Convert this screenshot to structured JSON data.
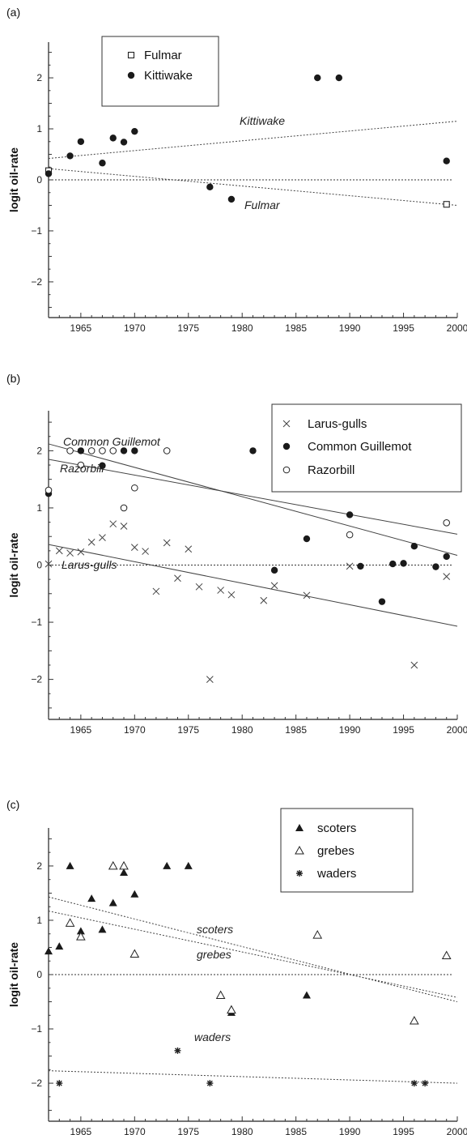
{
  "chart_data": [
    {
      "panel_label": "(a)",
      "type": "scatter",
      "ylabel": "logit oil-rate",
      "xlim": [
        1962,
        2000
      ],
      "ylim": [
        -2.7,
        2.7
      ],
      "xticks": [
        1965,
        1970,
        1975,
        1980,
        1985,
        1990,
        1995,
        2000
      ],
      "yticks": [
        -2,
        -1,
        0,
        1,
        2
      ],
      "series": [
        {
          "name": "Fulmar",
          "marker": "open-square",
          "points": [
            {
              "x": 1962,
              "y": 0.18
            },
            {
              "x": 1999,
              "y": -0.48
            }
          ]
        },
        {
          "name": "Kittiwake",
          "marker": "filled-circle",
          "points": [
            {
              "x": 1962,
              "y": 0.12
            },
            {
              "x": 1964,
              "y": 0.47
            },
            {
              "x": 1965,
              "y": 0.75
            },
            {
              "x": 1967,
              "y": 0.33
            },
            {
              "x": 1968,
              "y": 0.82
            },
            {
              "x": 1969,
              "y": 0.74
            },
            {
              "x": 1970,
              "y": 0.95
            },
            {
              "x": 1977,
              "y": -0.14
            },
            {
              "x": 1979,
              "y": -0.38
            },
            {
              "x": 1987,
              "y": 2.0
            },
            {
              "x": 1989,
              "y": 2.0
            },
            {
              "x": 1999,
              "y": 0.37
            }
          ]
        }
      ],
      "trend_lines": [
        {
          "label": "Kittiwake",
          "x": [
            1962,
            2000
          ],
          "y": [
            0.42,
            1.15
          ],
          "style": "dotted"
        },
        {
          "label": "Fulmar",
          "x": [
            1962,
            2000
          ],
          "y": [
            0.22,
            -0.5
          ],
          "style": "dotted"
        }
      ],
      "zero_line": true,
      "legend_position": "top-left"
    },
    {
      "panel_label": "(b)",
      "type": "scatter",
      "ylabel": "logit oil-rate",
      "xlim": [
        1962,
        2000
      ],
      "ylim": [
        -2.7,
        2.7
      ],
      "xticks": [
        1965,
        1970,
        1975,
        1980,
        1985,
        1990,
        1995,
        2000
      ],
      "yticks": [
        -2,
        -1,
        0,
        1,
        2
      ],
      "series": [
        {
          "name": "Larus-gulls",
          "marker": "cross",
          "points": [
            {
              "x": 1962,
              "y": 0.02
            },
            {
              "x": 1963,
              "y": 0.25
            },
            {
              "x": 1964,
              "y": 0.21
            },
            {
              "x": 1965,
              "y": 0.23
            },
            {
              "x": 1966,
              "y": 0.4
            },
            {
              "x": 1967,
              "y": 0.48
            },
            {
              "x": 1968,
              "y": 0.72
            },
            {
              "x": 1969,
              "y": 0.68
            },
            {
              "x": 1970,
              "y": 0.31
            },
            {
              "x": 1971,
              "y": 0.24
            },
            {
              "x": 1972,
              "y": -0.46
            },
            {
              "x": 1973,
              "y": 0.39
            },
            {
              "x": 1974,
              "y": -0.23
            },
            {
              "x": 1975,
              "y": 0.28
            },
            {
              "x": 1976,
              "y": -0.38
            },
            {
              "x": 1977,
              "y": -2.0
            },
            {
              "x": 1978,
              "y": -0.44
            },
            {
              "x": 1979,
              "y": -0.52
            },
            {
              "x": 1982,
              "y": -0.62
            },
            {
              "x": 1983,
              "y": -0.36
            },
            {
              "x": 1986,
              "y": -0.53
            },
            {
              "x": 1990,
              "y": -0.02
            },
            {
              "x": 1996,
              "y": -1.75
            },
            {
              "x": 1999,
              "y": -0.2
            }
          ]
        },
        {
          "name": "Common Guillemot",
          "marker": "filled-circle",
          "points": [
            {
              "x": 1962,
              "y": 1.25
            },
            {
              "x": 1965,
              "y": 2.0
            },
            {
              "x": 1967,
              "y": 1.74
            },
            {
              "x": 1969,
              "y": 2.0
            },
            {
              "x": 1970,
              "y": 2.0
            },
            {
              "x": 1981,
              "y": 2.0
            },
            {
              "x": 1983,
              "y": -0.09
            },
            {
              "x": 1986,
              "y": 0.46
            },
            {
              "x": 1990,
              "y": 0.88
            },
            {
              "x": 1991,
              "y": -0.02
            },
            {
              "x": 1993,
              "y": -0.64
            },
            {
              "x": 1994,
              "y": 0.02
            },
            {
              "x": 1995,
              "y": 0.03
            },
            {
              "x": 1996,
              "y": 0.33
            },
            {
              "x": 1998,
              "y": -0.03
            },
            {
              "x": 1999,
              "y": 0.15
            }
          ]
        },
        {
          "name": "Razorbill",
          "marker": "open-circle",
          "points": [
            {
              "x": 1962,
              "y": 1.31
            },
            {
              "x": 1964,
              "y": 2.0
            },
            {
              "x": 1965,
              "y": 1.75
            },
            {
              "x": 1966,
              "y": 2.0
            },
            {
              "x": 1967,
              "y": 2.0
            },
            {
              "x": 1968,
              "y": 2.0
            },
            {
              "x": 1969,
              "y": 1.0
            },
            {
              "x": 1970,
              "y": 1.35
            },
            {
              "x": 1973,
              "y": 2.0
            },
            {
              "x": 1990,
              "y": 0.53
            },
            {
              "x": 1999,
              "y": 0.74
            }
          ]
        }
      ],
      "trend_lines": [
        {
          "label": "Common Guillemot",
          "x": [
            1962,
            2000
          ],
          "y": [
            2.12,
            0.17
          ],
          "style": "solid"
        },
        {
          "label": "Razorbill",
          "x": [
            1962,
            2000
          ],
          "y": [
            1.85,
            0.54
          ],
          "style": "solid"
        },
        {
          "label": "Larus-gulls",
          "x": [
            1962,
            2000
          ],
          "y": [
            0.36,
            -1.07
          ],
          "style": "solid"
        }
      ],
      "zero_line": true,
      "legend_position": "top-right"
    },
    {
      "panel_label": "(c)",
      "type": "scatter",
      "ylabel": "logit oil-rate",
      "xlim": [
        1962,
        2000
      ],
      "ylim": [
        -2.7,
        2.7
      ],
      "xticks": [
        1965,
        1970,
        1975,
        1980,
        1985,
        1990,
        1995,
        2000
      ],
      "yticks": [
        -2,
        -1,
        0,
        1,
        2
      ],
      "series": [
        {
          "name": "scoters",
          "marker": "filled-triangle",
          "points": [
            {
              "x": 1962,
              "y": 0.43
            },
            {
              "x": 1963,
              "y": 0.52
            },
            {
              "x": 1964,
              "y": 2.0
            },
            {
              "x": 1965,
              "y": 0.8
            },
            {
              "x": 1966,
              "y": 1.4
            },
            {
              "x": 1967,
              "y": 0.83
            },
            {
              "x": 1968,
              "y": 1.32
            },
            {
              "x": 1969,
              "y": 1.88
            },
            {
              "x": 1970,
              "y": 1.48
            },
            {
              "x": 1973,
              "y": 2.0
            },
            {
              "x": 1975,
              "y": 2.0
            },
            {
              "x": 1979,
              "y": -0.7
            },
            {
              "x": 1986,
              "y": -0.38
            }
          ]
        },
        {
          "name": "grebes",
          "marker": "open-triangle",
          "points": [
            {
              "x": 1964,
              "y": 0.95
            },
            {
              "x": 1965,
              "y": 0.7
            },
            {
              "x": 1968,
              "y": 2.0
            },
            {
              "x": 1969,
              "y": 2.0
            },
            {
              "x": 1970,
              "y": 0.38
            },
            {
              "x": 1978,
              "y": -0.38
            },
            {
              "x": 1979,
              "y": -0.65
            },
            {
              "x": 1987,
              "y": 0.73
            },
            {
              "x": 1996,
              "y": -0.85
            },
            {
              "x": 1999,
              "y": 0.35
            }
          ]
        },
        {
          "name": "waders",
          "marker": "asterisk",
          "points": [
            {
              "x": 1963,
              "y": -2.0
            },
            {
              "x": 1974,
              "y": -1.4
            },
            {
              "x": 1977,
              "y": -2.0
            },
            {
              "x": 1996,
              "y": -2.0
            },
            {
              "x": 1997,
              "y": -2.0
            }
          ]
        }
      ],
      "trend_lines": [
        {
          "label": "scoters",
          "x": [
            1962,
            2000
          ],
          "y": [
            1.43,
            -0.5
          ],
          "style": "dotted"
        },
        {
          "label": "grebes",
          "x": [
            1962,
            2000
          ],
          "y": [
            1.17,
            -0.42
          ],
          "style": "dotted"
        },
        {
          "label": "waders",
          "x": [
            1962,
            2000
          ],
          "y": [
            -1.77,
            -2.0
          ],
          "style": "dotted"
        }
      ],
      "zero_line": true,
      "legend_position": "top-right"
    }
  ],
  "annotations": {
    "panel_a": [
      "Kittiwake",
      "Fulmar"
    ],
    "panel_b": [
      "Common Guillemot",
      "Razorbill",
      "Larus-gulls"
    ],
    "panel_c": [
      "scoters",
      "grebes",
      "waders"
    ]
  }
}
